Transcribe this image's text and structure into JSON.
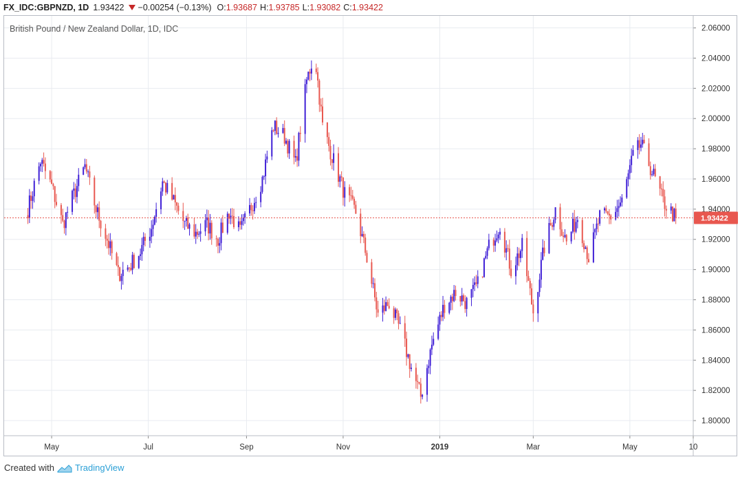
{
  "header": {
    "symbol": "FX_IDC:GBPNZD, 1D",
    "last": "1.93422",
    "change": "−0.00254 (−0.13%)",
    "o_label": "O:",
    "o_value": "1.93687",
    "h_label": "H:",
    "h_value": "1.93785",
    "l_label": "L:",
    "l_value": "1.93082",
    "c_label": "C:",
    "c_value": "1.93422"
  },
  "footer": {
    "created_with": "Created with",
    "brand": "TradingView"
  },
  "colors": {
    "up": "#3f1fd6",
    "down": "#e8574f",
    "grid": "#e8ebf0",
    "axis": "#b8bcc4",
    "last_price_bg": "#e8574f"
  },
  "chart_data": {
    "type": "candlestick",
    "title": "British Pound / New Zealand Dollar, 1D, IDC",
    "ylim": [
      1.79,
      2.068
    ],
    "y_ticks": [
      "2.06000",
      "2.04000",
      "2.02000",
      "2.00000",
      "1.98000",
      "1.96000",
      "1.94000",
      "1.92000",
      "1.90000",
      "1.88000",
      "1.86000",
      "1.84000",
      "1.82000",
      "1.80000"
    ],
    "x_labels": [
      "May",
      "Jul",
      "Sep",
      "Nov",
      "2019",
      "Mar",
      "May",
      "10"
    ],
    "last_price": 1.93422,
    "last_price_label": "1.93422",
    "grid": true,
    "series": [
      {
        "date": "2018-04-16",
        "close": 1.94
      },
      {
        "date": "2018-04-24",
        "close": 1.972
      },
      {
        "date": "2018-05-01",
        "close": 1.955
      },
      {
        "date": "2018-05-08",
        "close": 1.93
      },
      {
        "date": "2018-05-15",
        "close": 1.95
      },
      {
        "date": "2018-05-22",
        "close": 1.968
      },
      {
        "date": "2018-05-29",
        "close": 1.94
      },
      {
        "date": "2018-06-05",
        "close": 1.92
      },
      {
        "date": "2018-06-12",
        "close": 1.897
      },
      {
        "date": "2018-06-19",
        "close": 1.902
      },
      {
        "date": "2018-06-26",
        "close": 1.912
      },
      {
        "date": "2018-07-03",
        "close": 1.928
      },
      {
        "date": "2018-07-10",
        "close": 1.958
      },
      {
        "date": "2018-07-17",
        "close": 1.945
      },
      {
        "date": "2018-07-24",
        "close": 1.93
      },
      {
        "date": "2018-07-31",
        "close": 1.924
      },
      {
        "date": "2018-08-07",
        "close": 1.93
      },
      {
        "date": "2018-08-14",
        "close": 1.92
      },
      {
        "date": "2018-08-21",
        "close": 1.938
      },
      {
        "date": "2018-08-28",
        "close": 1.925
      },
      {
        "date": "2018-09-04",
        "close": 1.942
      },
      {
        "date": "2018-09-11",
        "close": 1.96
      },
      {
        "date": "2018-09-18",
        "close": 1.995
      },
      {
        "date": "2018-09-25",
        "close": 1.988
      },
      {
        "date": "2018-10-02",
        "close": 1.97
      },
      {
        "date": "2018-10-09",
        "close": 2.025
      },
      {
        "date": "2018-10-14",
        "close": 2.044
      },
      {
        "date": "2018-10-19",
        "close": 1.995
      },
      {
        "date": "2018-10-26",
        "close": 1.972
      },
      {
        "date": "2018-11-02",
        "close": 1.95
      },
      {
        "date": "2018-11-09",
        "close": 1.938
      },
      {
        "date": "2018-11-16",
        "close": 1.908
      },
      {
        "date": "2018-11-23",
        "close": 1.87
      },
      {
        "date": "2018-11-30",
        "close": 1.878
      },
      {
        "date": "2018-12-07",
        "close": 1.86
      },
      {
        "date": "2018-12-14",
        "close": 1.835
      },
      {
        "date": "2018-12-20",
        "close": 1.816
      },
      {
        "date": "2018-12-27",
        "close": 1.85
      },
      {
        "date": "2019-01-04",
        "close": 1.877
      },
      {
        "date": "2019-01-11",
        "close": 1.885
      },
      {
        "date": "2019-01-18",
        "close": 1.878
      },
      {
        "date": "2019-01-25",
        "close": 1.89
      },
      {
        "date": "2019-02-01",
        "close": 1.915
      },
      {
        "date": "2019-02-08",
        "close": 1.93
      },
      {
        "date": "2019-02-15",
        "close": 1.9
      },
      {
        "date": "2019-02-22",
        "close": 1.915
      },
      {
        "date": "2019-03-01",
        "close": 1.872
      },
      {
        "date": "2019-03-08",
        "close": 1.915
      },
      {
        "date": "2019-03-15",
        "close": 1.94
      },
      {
        "date": "2019-03-22",
        "close": 1.918
      },
      {
        "date": "2019-03-29",
        "close": 1.935
      },
      {
        "date": "2019-04-05",
        "close": 1.908
      },
      {
        "date": "2019-04-12",
        "close": 1.935
      },
      {
        "date": "2019-04-19",
        "close": 1.935
      },
      {
        "date": "2019-04-26",
        "close": 1.945
      },
      {
        "date": "2019-05-03",
        "close": 1.975
      },
      {
        "date": "2019-05-08",
        "close": 1.983
      },
      {
        "date": "2019-05-15",
        "close": 1.965
      },
      {
        "date": "2019-05-22",
        "close": 1.945
      },
      {
        "date": "2019-05-30",
        "close": 1.934
      }
    ]
  }
}
